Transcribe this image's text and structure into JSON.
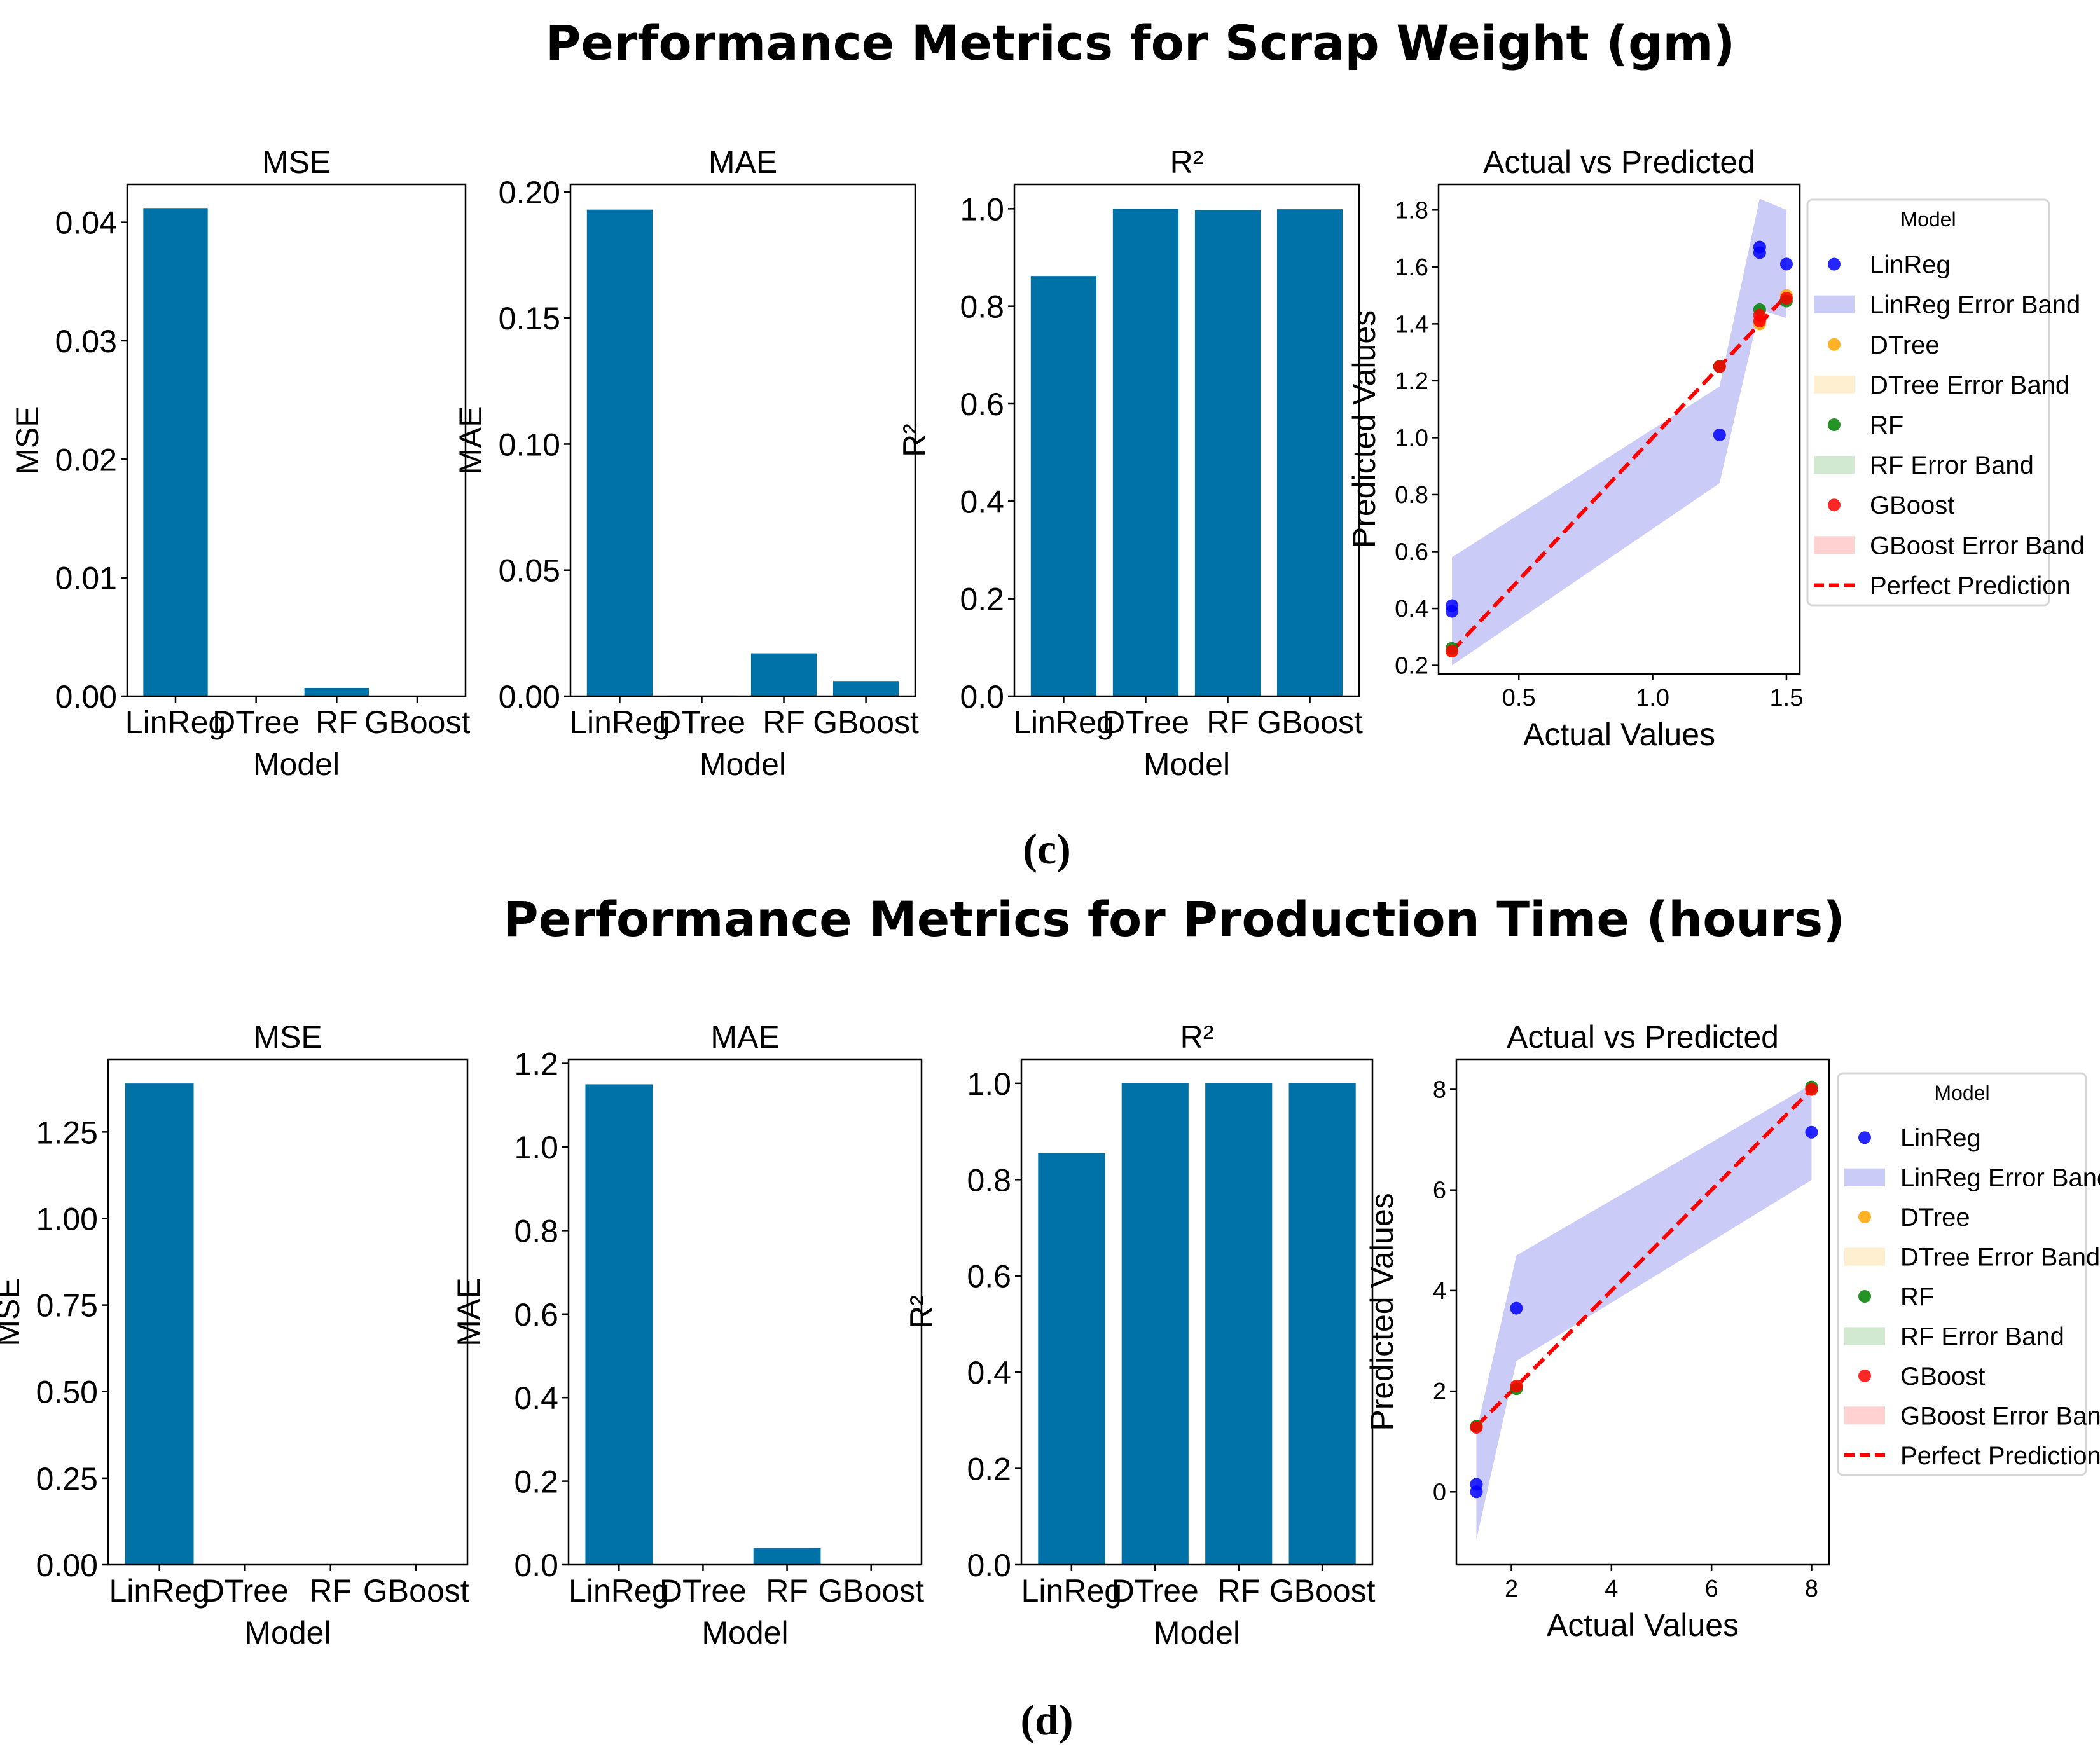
{
  "figures": [
    {
      "title": "Performance Metrics for Scrap Weight (gm)",
      "caption": "(c)"
    },
    {
      "title": "Performance Metrics for Production Time (hours)",
      "caption": "(d)"
    }
  ],
  "colors": {
    "bar": "#0072a8",
    "LinReg": "#0000ff",
    "DTree": "#ffa500",
    "RF": "#008000",
    "GBoost": "#ff0000",
    "perfect": "#ff0000",
    "linreg_band": "#b9b9f5",
    "dtree_band": "#ffe9c2",
    "rf_band": "#c2e0c2",
    "gboost_band": "#ffc2c2"
  },
  "legend": {
    "title": "Model",
    "items": [
      "LinReg",
      "LinReg Error Band",
      "DTree",
      "DTree Error Band",
      "RF",
      "RF Error Band",
      "GBoost",
      "GBoost Error Band",
      "Perfect Prediction"
    ]
  },
  "chart_data": [
    {
      "type": "bar",
      "panel": "c-mse",
      "title": "MSE",
      "xlabel": "Model",
      "ylabel": "MSE",
      "categories": [
        "LinReg",
        "DTree",
        "RF",
        "GBoost"
      ],
      "values": [
        0.0412,
        5e-05,
        0.0007,
        5e-05
      ],
      "ylim": [
        0,
        0.0432
      ],
      "yticks": [
        0.0,
        0.01,
        0.02,
        0.03,
        0.04
      ],
      "yticklabels": [
        "0.00",
        "0.01",
        "0.02",
        "0.03",
        "0.04"
      ]
    },
    {
      "type": "bar",
      "panel": "c-mae",
      "title": "MAE",
      "xlabel": "Model",
      "ylabel": "MAE",
      "categories": [
        "LinReg",
        "DTree",
        "RF",
        "GBoost"
      ],
      "values": [
        0.193,
        0.0003,
        0.017,
        0.006
      ],
      "ylim": [
        0,
        0.203
      ],
      "yticks": [
        0.0,
        0.05,
        0.1,
        0.15,
        0.2
      ],
      "yticklabels": [
        "0.00",
        "0.05",
        "0.10",
        "0.15",
        "0.20"
      ]
    },
    {
      "type": "bar",
      "panel": "c-r2",
      "title": "R²",
      "xlabel": "Model",
      "ylabel": "R²",
      "categories": [
        "LinReg",
        "DTree",
        "RF",
        "GBoost"
      ],
      "values": [
        0.862,
        1.0,
        0.997,
        0.999
      ],
      "ylim": [
        0,
        1.05
      ],
      "yticks": [
        0.0,
        0.2,
        0.4,
        0.6,
        0.8,
        1.0
      ],
      "yticklabels": [
        "0.0",
        "0.2",
        "0.4",
        "0.6",
        "0.8",
        "1.0"
      ]
    },
    {
      "type": "scatter",
      "panel": "c-avp",
      "title": "Actual vs Predicted",
      "xlabel": "Actual Values",
      "ylabel": "Predicted Values",
      "xlim": [
        0.2,
        1.55
      ],
      "ylim": [
        0.17,
        1.89
      ],
      "xticks": [
        0.5,
        1.0,
        1.5
      ],
      "xticklabels": [
        "0.5",
        "1.0",
        "1.5"
      ],
      "yticks": [
        0.2,
        0.4,
        0.6,
        0.8,
        1.0,
        1.2,
        1.4,
        1.6,
        1.8
      ],
      "yticklabels": [
        "0.2",
        "0.4",
        "0.6",
        "0.8",
        "1.0",
        "1.2",
        "1.4",
        "1.6",
        "1.8"
      ],
      "series": [
        {
          "name": "LinReg",
          "points": [
            [
              0.25,
              0.39
            ],
            [
              0.25,
              0.41
            ],
            [
              1.25,
              1.01
            ],
            [
              1.4,
              1.65
            ],
            [
              1.4,
              1.67
            ],
            [
              1.5,
              1.61
            ]
          ]
        },
        {
          "name": "DTree",
          "points": [
            [
              0.25,
              0.25
            ],
            [
              1.25,
              1.25
            ],
            [
              1.4,
              1.4
            ],
            [
              1.5,
              1.5
            ]
          ]
        },
        {
          "name": "RF",
          "points": [
            [
              0.25,
              0.26
            ],
            [
              1.25,
              1.25
            ],
            [
              1.4,
              1.45
            ],
            [
              1.5,
              1.48
            ]
          ]
        },
        {
          "name": "GBoost",
          "points": [
            [
              0.25,
              0.25
            ],
            [
              1.25,
              1.25
            ],
            [
              1.4,
              1.41
            ],
            [
              1.4,
              1.43
            ],
            [
              1.5,
              1.49
            ]
          ]
        }
      ],
      "linreg_band": {
        "x": [
          0.25,
          1.25,
          1.4,
          1.5
        ],
        "lower": [
          0.2,
          0.84,
          1.45,
          1.42
        ],
        "upper": [
          0.58,
          1.18,
          1.84,
          1.8
        ]
      },
      "perfect_line": [
        [
          0.25,
          0.25
        ],
        [
          1.5,
          1.5
        ]
      ]
    },
    {
      "type": "bar",
      "panel": "d-mse",
      "title": "MSE",
      "xlabel": "Model",
      "ylabel": "MSE",
      "categories": [
        "LinReg",
        "DTree",
        "RF",
        "GBoost"
      ],
      "values": [
        1.39,
        0.0,
        0.0,
        0.0
      ],
      "ylim": [
        0,
        1.46
      ],
      "yticks": [
        0.0,
        0.25,
        0.5,
        0.75,
        1.0,
        1.25
      ],
      "yticklabels": [
        "0.00",
        "0.25",
        "0.50",
        "0.75",
        "1.00",
        "1.25"
      ]
    },
    {
      "type": "bar",
      "panel": "d-mae",
      "title": "MAE",
      "xlabel": "Model",
      "ylabel": "MAE",
      "categories": [
        "LinReg",
        "DTree",
        "RF",
        "GBoost"
      ],
      "values": [
        1.15,
        0.0,
        0.04,
        0.0
      ],
      "ylim": [
        0,
        1.21
      ],
      "yticks": [
        0.0,
        0.2,
        0.4,
        0.6,
        0.8,
        1.0,
        1.2
      ],
      "yticklabels": [
        "0.0",
        "0.2",
        "0.4",
        "0.6",
        "0.8",
        "1.0",
        "1.2"
      ]
    },
    {
      "type": "bar",
      "panel": "d-r2",
      "title": "R²",
      "xlabel": "Model",
      "ylabel": "R²",
      "categories": [
        "LinReg",
        "DTree",
        "RF",
        "GBoost"
      ],
      "values": [
        0.855,
        1.0,
        1.0,
        1.0
      ],
      "ylim": [
        0,
        1.05
      ],
      "yticks": [
        0.0,
        0.2,
        0.4,
        0.6,
        0.8,
        1.0
      ],
      "yticklabels": [
        "0.0",
        "0.2",
        "0.4",
        "0.6",
        "0.8",
        "1.0"
      ]
    },
    {
      "type": "scatter",
      "panel": "d-avp",
      "title": "Actual vs Predicted",
      "xlabel": "Actual Values",
      "ylabel": "Predicted Values",
      "xlim": [
        0.9,
        8.35
      ],
      "ylim": [
        -1.45,
        8.6
      ],
      "xticks": [
        2,
        4,
        6,
        8
      ],
      "xticklabels": [
        "2",
        "4",
        "6",
        "8"
      ],
      "yticks": [
        0,
        2,
        4,
        6,
        8
      ],
      "yticklabels": [
        "0",
        "2",
        "4",
        "6",
        "8"
      ],
      "series": [
        {
          "name": "LinReg",
          "points": [
            [
              1.3,
              0.0
            ],
            [
              1.3,
              0.15
            ],
            [
              2.1,
              3.65
            ],
            [
              8.0,
              7.15
            ]
          ]
        },
        {
          "name": "DTree",
          "points": [
            [
              1.3,
              1.3
            ],
            [
              2.1,
              2.1
            ],
            [
              8.0,
              8.0
            ]
          ]
        },
        {
          "name": "RF",
          "points": [
            [
              1.3,
              1.3
            ],
            [
              2.1,
              2.05
            ],
            [
              8.0,
              8.05
            ]
          ]
        },
        {
          "name": "GBoost",
          "points": [
            [
              1.3,
              1.28
            ],
            [
              2.1,
              2.1
            ],
            [
              8.0,
              8.0
            ]
          ]
        }
      ],
      "linreg_band": {
        "x": [
          1.3,
          2.1,
          8.0
        ],
        "lower": [
          -0.95,
          2.6,
          6.2
        ],
        "upper": [
          1.2,
          4.7,
          8.1
        ]
      },
      "perfect_line": [
        [
          1.3,
          1.3
        ],
        [
          8.0,
          8.0
        ]
      ]
    }
  ]
}
